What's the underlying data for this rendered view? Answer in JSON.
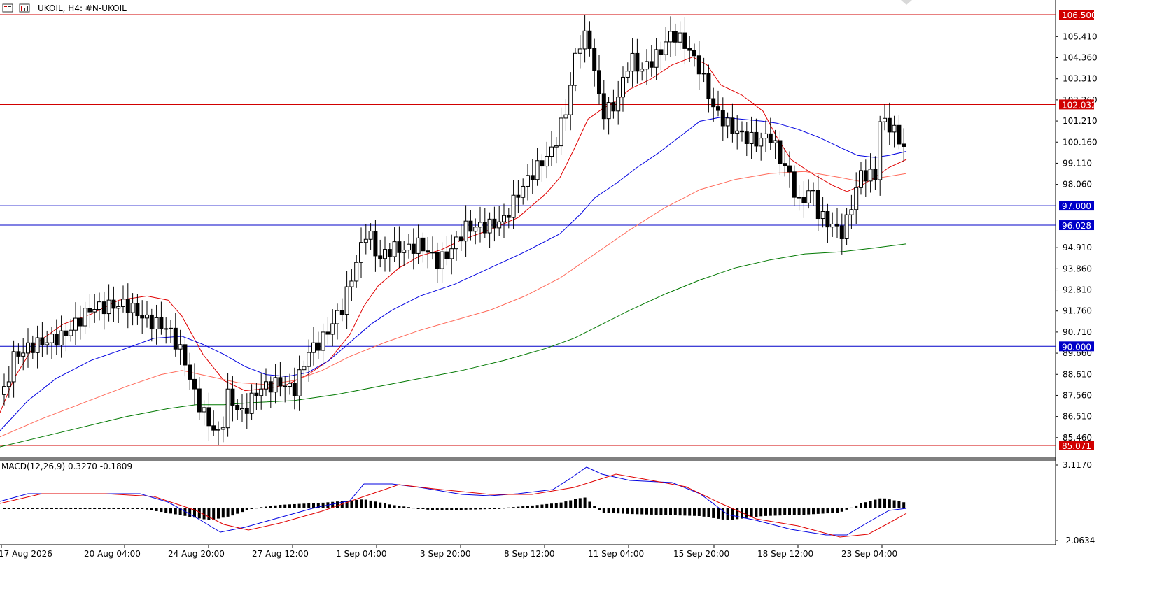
{
  "window": {
    "title": "UKOIL, H4:  #N-UKOIL"
  },
  "chart_data": [
    {
      "type": "candlestick",
      "title": "UKOIL, H4:  #N-UKOIL",
      "symbol": "UKOIL",
      "timeframe": "H4",
      "description": "#N-UKOIL",
      "ylim": [
        84.5,
        107.4
      ],
      "y_ticks": [
        "106.500",
        "105.410",
        "104.360",
        "103.310",
        "102.260",
        "101.210",
        "100.160",
        "99.110",
        "98.060",
        "97.000",
        "96.028",
        "94.910",
        "93.860",
        "92.810",
        "91.760",
        "90.710",
        "90.000",
        "89.660",
        "88.610",
        "87.560",
        "86.510",
        "85.460",
        "85.071"
      ],
      "x_ticks": [
        "17 Aug 2026",
        "20 Aug 04:00",
        "24 Aug 20:00",
        "27 Aug 12:00",
        "1 Sep 04:00",
        "3 Sep 20:00",
        "8 Sep 12:00",
        "11 Sep 04:00",
        "15 Sep 20:00",
        "18 Sep 12:00",
        "23 Sep 04:00"
      ],
      "horizontal_levels": [
        {
          "value": 106.5,
          "label": "106.500",
          "color": "#d10000"
        },
        {
          "value": 102.032,
          "label": "102.032",
          "color": "#d10000"
        },
        {
          "value": 97.0,
          "label": "97.000",
          "color": "#0000c8"
        },
        {
          "value": 96.028,
          "label": "96.028",
          "color": "#0000c8"
        },
        {
          "value": 90.0,
          "label": "90.000",
          "color": "#0000c8"
        },
        {
          "value": 85.071,
          "label": "85.071",
          "color": "#d10000"
        }
      ],
      "moving_averages": [
        {
          "color": "#e00000",
          "points": [
            [
              0,
              86.7
            ],
            [
              20,
              88.4
            ],
            [
              50,
              90.1
            ],
            [
              90,
              91.1
            ],
            [
              130,
              91.6
            ],
            [
              170,
              92.3
            ],
            [
              210,
              92.5
            ],
            [
              240,
              92.3
            ],
            [
              260,
              91.5
            ],
            [
              290,
              89.6
            ],
            [
              320,
              88.3
            ],
            [
              350,
              87.8
            ],
            [
              380,
              87.9
            ],
            [
              410,
              88.1
            ],
            [
              440,
              88.6
            ],
            [
              470,
              89.3
            ],
            [
              500,
              90.6
            ],
            [
              520,
              92.0
            ],
            [
              540,
              93.0
            ],
            [
              570,
              93.9
            ],
            [
              600,
              94.5
            ],
            [
              630,
              94.8
            ],
            [
              660,
              95.3
            ],
            [
              700,
              95.8
            ],
            [
              740,
              96.4
            ],
            [
              780,
              97.6
            ],
            [
              800,
              98.4
            ],
            [
              820,
              99.8
            ],
            [
              840,
              101.3
            ],
            [
              860,
              101.8
            ],
            [
              880,
              102.2
            ],
            [
              900,
              102.8
            ],
            [
              930,
              103.3
            ],
            [
              960,
              104.0
            ],
            [
              990,
              104.4
            ],
            [
              1010,
              104.0
            ],
            [
              1030,
              103.0
            ],
            [
              1060,
              102.5
            ],
            [
              1090,
              101.7
            ],
            [
              1110,
              100.4
            ],
            [
              1130,
              99.3
            ],
            [
              1160,
              98.6
            ],
            [
              1190,
              98.0
            ],
            [
              1210,
              97.7
            ],
            [
              1230,
              98.0
            ],
            [
              1250,
              98.4
            ],
            [
              1270,
              98.9
            ],
            [
              1295,
              99.3
            ]
          ]
        },
        {
          "color": "#0000e0",
          "points": [
            [
              0,
              85.8
            ],
            [
              40,
              87.3
            ],
            [
              80,
              88.4
            ],
            [
              130,
              89.3
            ],
            [
              180,
              89.9
            ],
            [
              220,
              90.4
            ],
            [
              260,
              90.5
            ],
            [
              290,
              90.1
            ],
            [
              320,
              89.6
            ],
            [
              350,
              89.0
            ],
            [
              380,
              88.6
            ],
            [
              410,
              88.5
            ],
            [
              440,
              88.7
            ],
            [
              470,
              89.3
            ],
            [
              500,
              90.2
            ],
            [
              530,
              91.1
            ],
            [
              560,
              91.8
            ],
            [
              600,
              92.5
            ],
            [
              650,
              93.1
            ],
            [
              700,
              93.9
            ],
            [
              750,
              94.7
            ],
            [
              800,
              95.6
            ],
            [
              830,
              96.6
            ],
            [
              850,
              97.4
            ],
            [
              880,
              98.1
            ],
            [
              910,
              98.9
            ],
            [
              940,
              99.6
            ],
            [
              970,
              100.4
            ],
            [
              1000,
              101.2
            ],
            [
              1030,
              101.4
            ],
            [
              1060,
              101.3
            ],
            [
              1090,
              101.2
            ],
            [
              1110,
              101.1
            ],
            [
              1140,
              100.8
            ],
            [
              1170,
              100.4
            ],
            [
              1200,
              99.9
            ],
            [
              1225,
              99.5
            ],
            [
              1250,
              99.4
            ],
            [
              1270,
              99.5
            ],
            [
              1295,
              99.7
            ]
          ]
        },
        {
          "color": "#ff6a5a",
          "points": [
            [
              0,
              85.5
            ],
            [
              60,
              86.4
            ],
            [
              120,
              87.2
            ],
            [
              180,
              88.0
            ],
            [
              230,
              88.6
            ],
            [
              260,
              88.8
            ],
            [
              300,
              88.5
            ],
            [
              340,
              88.2
            ],
            [
              380,
              88.1
            ],
            [
              420,
              88.3
            ],
            [
              460,
              88.8
            ],
            [
              500,
              89.5
            ],
            [
              550,
              90.2
            ],
            [
              600,
              90.8
            ],
            [
              650,
              91.3
            ],
            [
              700,
              91.8
            ],
            [
              750,
              92.5
            ],
            [
              800,
              93.4
            ],
            [
              850,
              94.6
            ],
            [
              900,
              95.8
            ],
            [
              950,
              96.9
            ],
            [
              1000,
              97.8
            ],
            [
              1050,
              98.3
            ],
            [
              1100,
              98.6
            ],
            [
              1150,
              98.7
            ],
            [
              1200,
              98.4
            ],
            [
              1230,
              98.2
            ],
            [
              1260,
              98.4
            ],
            [
              1295,
              98.6
            ]
          ]
        },
        {
          "color": "#007800",
          "points": [
            [
              0,
              85.0
            ],
            [
              60,
              85.5
            ],
            [
              120,
              86.0
            ],
            [
              180,
              86.5
            ],
            [
              240,
              86.9
            ],
            [
              280,
              87.1
            ],
            [
              320,
              87.1
            ],
            [
              360,
              87.2
            ],
            [
              420,
              87.3
            ],
            [
              480,
              87.6
            ],
            [
              540,
              88.0
            ],
            [
              600,
              88.4
            ],
            [
              660,
              88.8
            ],
            [
              720,
              89.3
            ],
            [
              780,
              89.9
            ],
            [
              820,
              90.4
            ],
            [
              860,
              91.1
            ],
            [
              900,
              91.8
            ],
            [
              950,
              92.6
            ],
            [
              1000,
              93.3
            ],
            [
              1050,
              93.9
            ],
            [
              1100,
              94.3
            ],
            [
              1150,
              94.6
            ],
            [
              1200,
              94.7
            ],
            [
              1250,
              94.9
            ],
            [
              1295,
              95.1
            ]
          ]
        }
      ]
    },
    {
      "type": "macd",
      "label": "MACD(12,26,9) 0.3270 -0.1809",
      "params": "MACD(12,26,9)",
      "macd_value": "0.3270",
      "signal_value": "-0.1809",
      "y_ticks": [
        "3.1170",
        "-2.0634"
      ],
      "ylim": [
        -2.0634,
        3.117
      ]
    }
  ]
}
